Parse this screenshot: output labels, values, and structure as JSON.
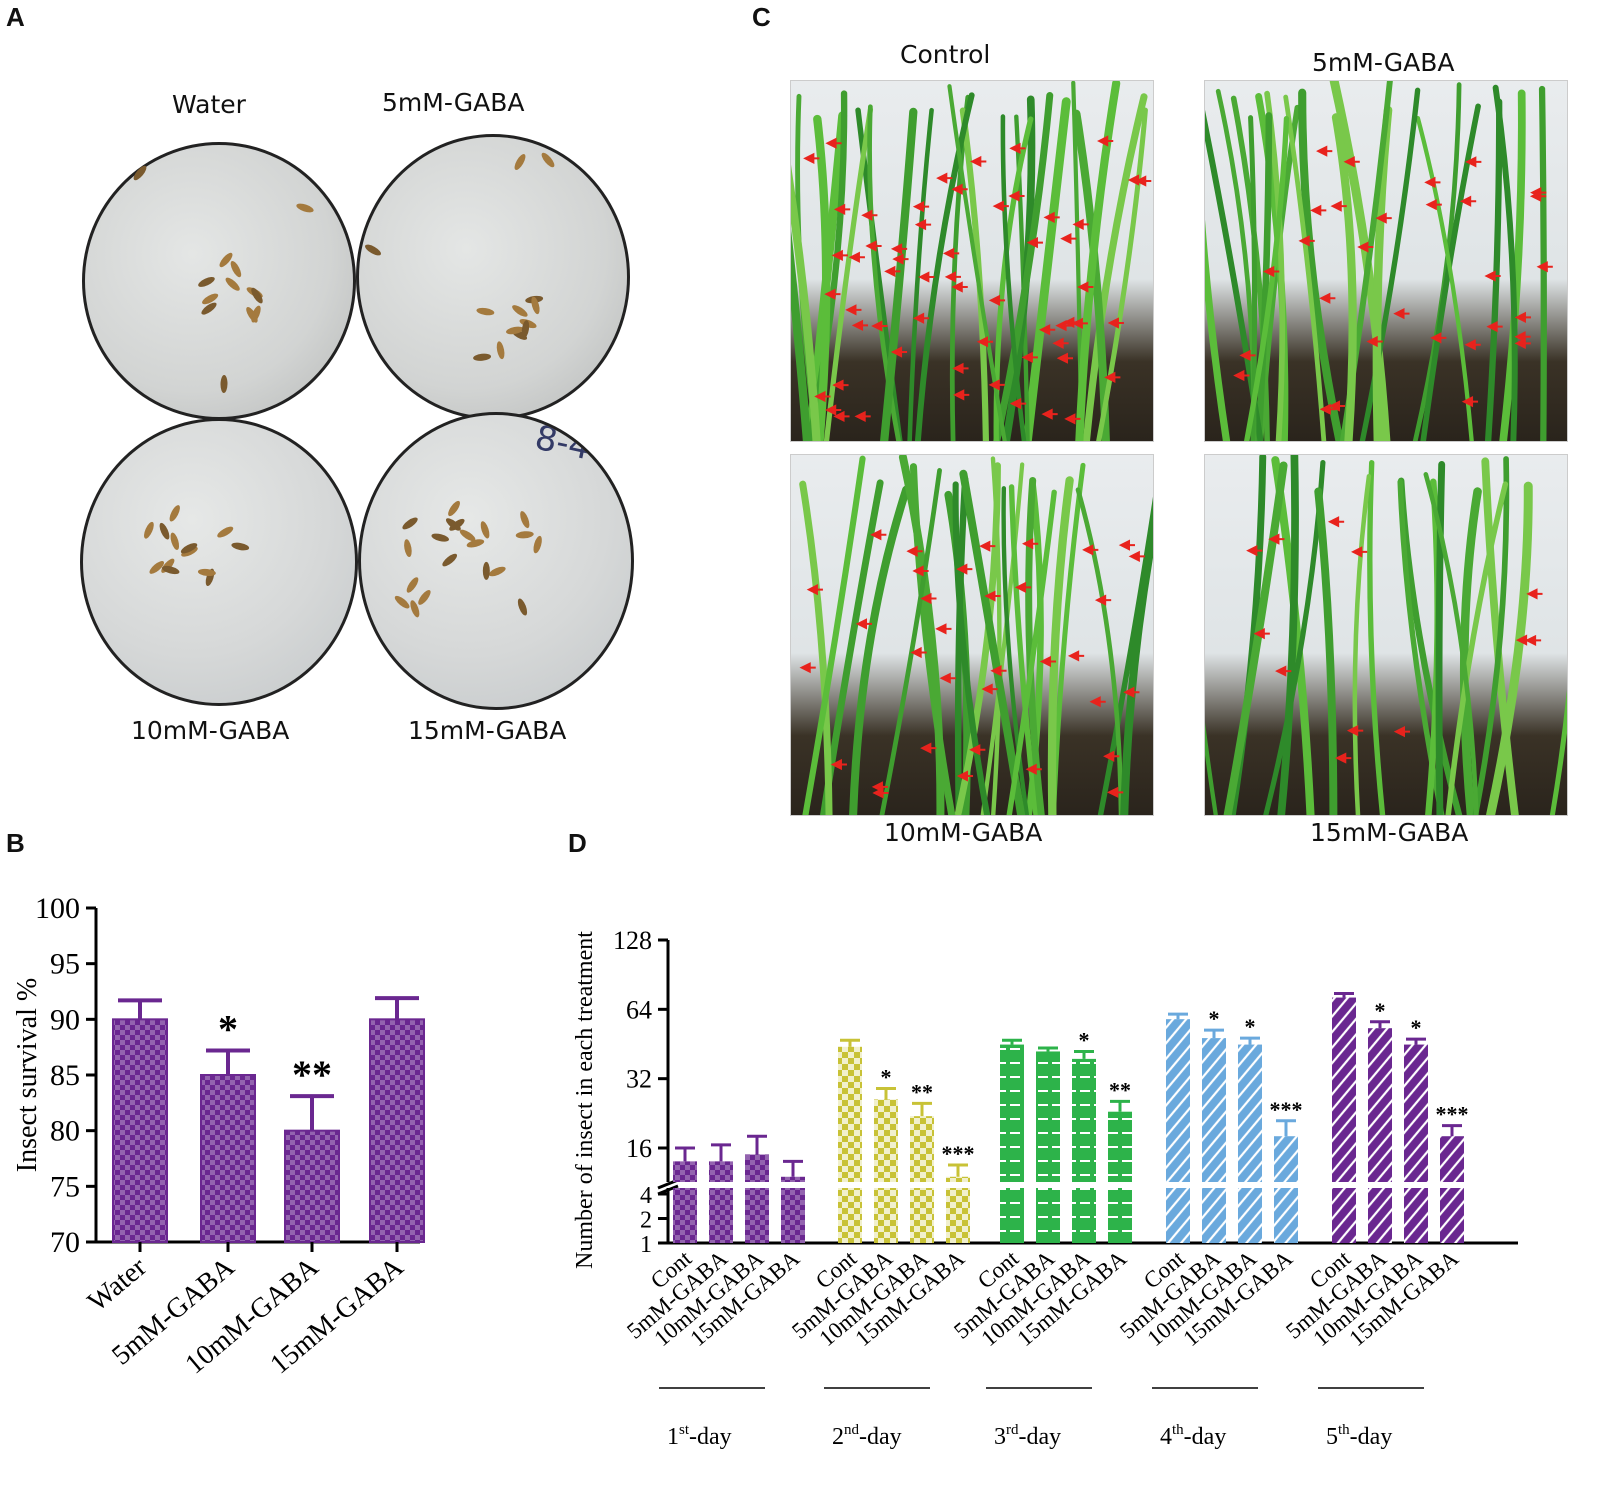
{
  "panels": {
    "A": {
      "letter": "A",
      "labels": {
        "water": "Water",
        "gaba5": "5mM-GABA",
        "gaba10": "10mM-GABA",
        "gaba15": "15mM-GABA"
      },
      "dish_mark": "8-4"
    },
    "B": {
      "letter": "B"
    },
    "C": {
      "letter": "C",
      "labels": {
        "control": "Control",
        "gaba5": "5mM-GABA",
        "gaba10": "10mM-GABA",
        "gaba15": "15mM-GABA"
      }
    },
    "D": {
      "letter": "D"
    }
  },
  "colors": {
    "purple": "#6a2790",
    "yellow": "#c8c236",
    "green": "#2db34a",
    "blue": "#6aa9dd",
    "arrow_red": "#e8231d"
  },
  "chart_data": [
    {
      "type": "bar",
      "panel": "B",
      "categories": [
        "Water",
        "5mM-GABA",
        "10mM-GABA",
        "15mM-GABA"
      ],
      "values": [
        90,
        85,
        80,
        90
      ],
      "errors": [
        1.7,
        2.2,
        3.1,
        1.9
      ],
      "significance": [
        "",
        "*",
        "**",
        ""
      ],
      "ylabel": "Insect survival %",
      "ylim": [
        70,
        100
      ],
      "yticks": [
        70,
        75,
        80,
        85,
        90,
        95,
        100
      ],
      "pattern": "checkered",
      "color": "#6a2790"
    },
    {
      "type": "bar",
      "panel": "D",
      "ylabel": "Number of insect in each treatment",
      "y_scale": "log2 with axis break",
      "yticks_upper": [
        16,
        32,
        64,
        128
      ],
      "yticks_lower": [
        1,
        2,
        4
      ],
      "categories": [
        "Cont",
        "5mM-GABA",
        "10mM-GABA",
        "15mM-GABA"
      ],
      "groups": [
        {
          "day_num": "1",
          "day_sup": "st",
          "day_suffix": "-day",
          "color": "#6a2790",
          "pattern": "checkered",
          "values": [
            14,
            14,
            15,
            12
          ],
          "errors": [
            2,
            2.5,
            3,
            2
          ],
          "significance": [
            "",
            "",
            "",
            ""
          ]
        },
        {
          "day_num": "2",
          "day_sup": "nd",
          "day_suffix": "-day",
          "color": "#c8c236",
          "pattern": "checkered",
          "values": [
            44,
            26,
            22,
            12
          ],
          "errors": [
            3,
            3,
            3,
            1.5
          ],
          "significance": [
            "",
            "*",
            "**",
            "***"
          ]
        },
        {
          "day_num": "3",
          "day_sup": "rd",
          "day_suffix": "-day",
          "color": "#2db34a",
          "pattern": "dashes",
          "values": [
            45,
            42,
            39,
            23
          ],
          "errors": [
            2,
            1.5,
            3,
            2.5
          ],
          "significance": [
            "",
            "",
            "*",
            "**"
          ]
        },
        {
          "day_num": "4",
          "day_sup": "th",
          "day_suffix": "-day",
          "color": "#6aa9dd",
          "pattern": "diagonal",
          "values": [
            58,
            48,
            45,
            18
          ],
          "errors": [
            3,
            4,
            3,
            3
          ],
          "significance": [
            "",
            "*",
            "*",
            "***"
          ]
        },
        {
          "day_num": "5",
          "day_sup": "th",
          "day_suffix": "-day",
          "color": "#6a2790",
          "pattern": "diagonal",
          "values": [
            72,
            53,
            45,
            18
          ],
          "errors": [
            3,
            3.5,
            2.5,
            2
          ],
          "significance": [
            "",
            "*",
            "*",
            "***"
          ]
        }
      ]
    }
  ]
}
